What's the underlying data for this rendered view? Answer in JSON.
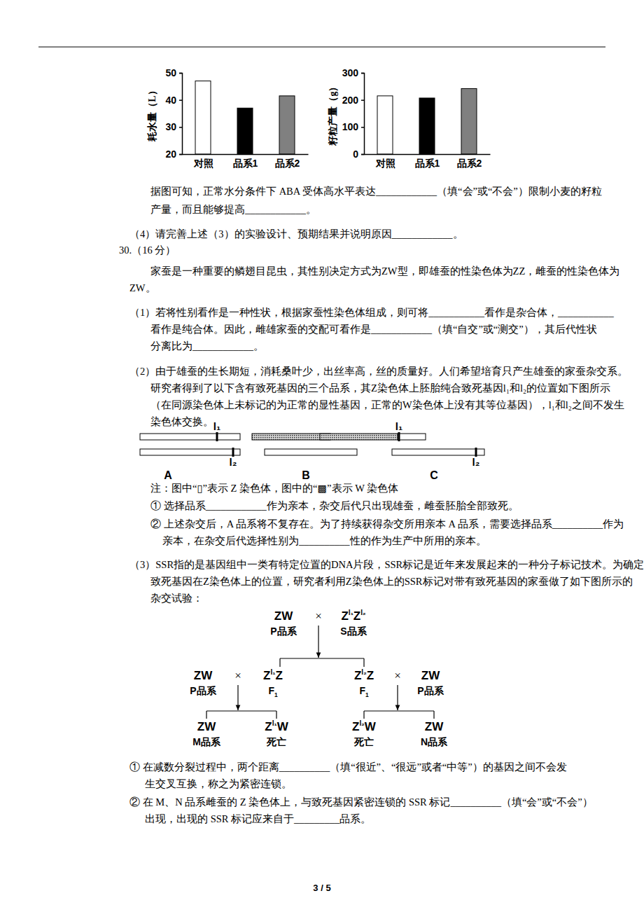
{
  "chart_data": [
    {
      "type": "bar",
      "y_label": "耗水量（L）",
      "categories": [
        "对照",
        "品系1",
        "品系2"
      ],
      "values": [
        47,
        37,
        41.5
      ],
      "colors": [
        "#ffffff",
        "#000000",
        "#808080"
      ],
      "ylim": [
        20,
        50
      ],
      "yticks": [
        20,
        30,
        40,
        50
      ]
    },
    {
      "type": "bar",
      "y_label": "籽粒产量（g）",
      "categories": [
        "对照",
        "品系1",
        "品系2"
      ],
      "values": [
        215,
        207,
        242
      ],
      "colors": [
        "#ffffff",
        "#000000",
        "#808080"
      ],
      "ylim": [
        0,
        300
      ],
      "yticks": [
        0,
        100,
        200,
        300
      ]
    }
  ],
  "document": {
    "lines": [
      "据图可知，正常水分条件下 ABA 受体高水平表达____________（填“会”或“不会”）限制小麦的籽粒",
      "产量，而且能够提高____________。",
      "（4）请完善上述（3）的实验设计、预期结果并说明原因____________。",
      "30.（16 分）",
      "家蚕是一种重要的鳞翅目昆虫，其性别决定方式为ZW型，即雄蚕的性染色体为ZZ，雌蚕的性染色体为",
      "ZW。",
      "（1）若将性别看作是一种性状，根据家蚕性染色体组成，则可将___________看作是杂合体，___________",
      "看作是纯合体。因此，雌雄家蚕的交配可看作是____________（填“自交”或“测交”），其后代性状",
      "分离比为____________。",
      "（2）由于雄蚕的生长期短，消耗桑叶少，出丝率高，丝的质量好。人们希望培育只产生雄蚕的家蚕杂交系。",
      "研究者得到了以下含有致死基因的三个品系，其Z染色体上胚胎纯合致死基因l₁和l₂的位置如下图所示",
      "（在同源染色体上未标记的为正常的显性基因，正常的W染色体上没有其等位基因），l₁和l₂之间不发生",
      "染色体交换。",
      "注：图中“▯”表示 Z 染色体，图中的“▩”表示 W 染色体",
      "① 选择品系____________作为亲本，杂交后代只出现雄蚕，雌蚕胚胎全部致死。",
      "② 上述杂交后，A 品系将不复存在。为了持续获得杂交所用亲本 A 品系，需要选择品系__________作为",
      "亲本，在杂交后代选择性别为__________性的作为生产中所用的亲本。",
      "（3）SSR指的是基因组中一类有特定位置的DNA片段，SSR标记是近年来发展起来的一种分子标记技术。为确定",
      "致死基因在Z染色体上的位置，研究者利用Z染色体上的SSR标记对带有致死基因的家蚕做了如下图所示的",
      "杂交试验：",
      "① 在减数分裂过程中，两个距离__________（填“很近”、“很远”或者“中等”）的基因之间不会发",
      "生交叉互换，称之为紧密连锁。",
      "② 在 M、N 品系雌蚕的 Z 染色体上，与致死基因紧密连锁的 SSR 标记__________（填“会”或“不会”）",
      "出现，出现的 SSR 标记应来自于_________品系。"
    ],
    "chromosome_figure": {
      "l1": "l₁",
      "l2": "l₂",
      "panels": [
        "A",
        "B",
        "C"
      ]
    },
    "cross_figure": {
      "cross_sign": "×",
      "nodes": [
        {
          "genotype": [
            {
              "base": "ZW"
            }
          ],
          "label": [
            {
              "base": "P品系"
            }
          ]
        },
        {
          "genotype": [
            {
              "base": "Z"
            },
            {
              "sup": "l₁"
            },
            {
              "base": "Z"
            },
            {
              "sup": "l₂"
            }
          ],
          "label": [
            {
              "base": "S品系"
            }
          ]
        },
        {
          "genotype": [
            {
              "base": "ZW"
            }
          ],
          "label": [
            {
              "base": "P品系"
            }
          ]
        },
        {
          "genotype": [
            {
              "base": "Z"
            },
            {
              "sup": "l₁"
            },
            {
              "base": "Z"
            }
          ],
          "label": [
            {
              "base": "F"
            },
            {
              "sub": "1"
            }
          ]
        },
        {
          "genotype": [
            {
              "base": "Z"
            },
            {
              "sup": "l₂"
            },
            {
              "base": "Z"
            }
          ],
          "label": [
            {
              "base": "F"
            },
            {
              "sub": "1"
            }
          ]
        },
        {
          "genotype": [
            {
              "base": "ZW"
            }
          ],
          "label": [
            {
              "base": "P品系"
            }
          ]
        },
        {
          "genotype": [
            {
              "base": "ZW"
            }
          ],
          "label": [
            {
              "base": "M品系"
            }
          ]
        },
        {
          "genotype": [
            {
              "base": "Z"
            },
            {
              "sup": "l₁"
            },
            {
              "base": "W"
            }
          ],
          "label": [
            {
              "base": "死亡"
            }
          ]
        },
        {
          "genotype": [
            {
              "base": "Z"
            },
            {
              "sup": "l₂"
            },
            {
              "base": "W"
            }
          ],
          "label": [
            {
              "base": "死亡"
            }
          ]
        },
        {
          "genotype": [
            {
              "base": "ZW"
            }
          ],
          "label": [
            {
              "base": "N品系"
            }
          ]
        }
      ]
    },
    "page_number": "3 / 5"
  }
}
